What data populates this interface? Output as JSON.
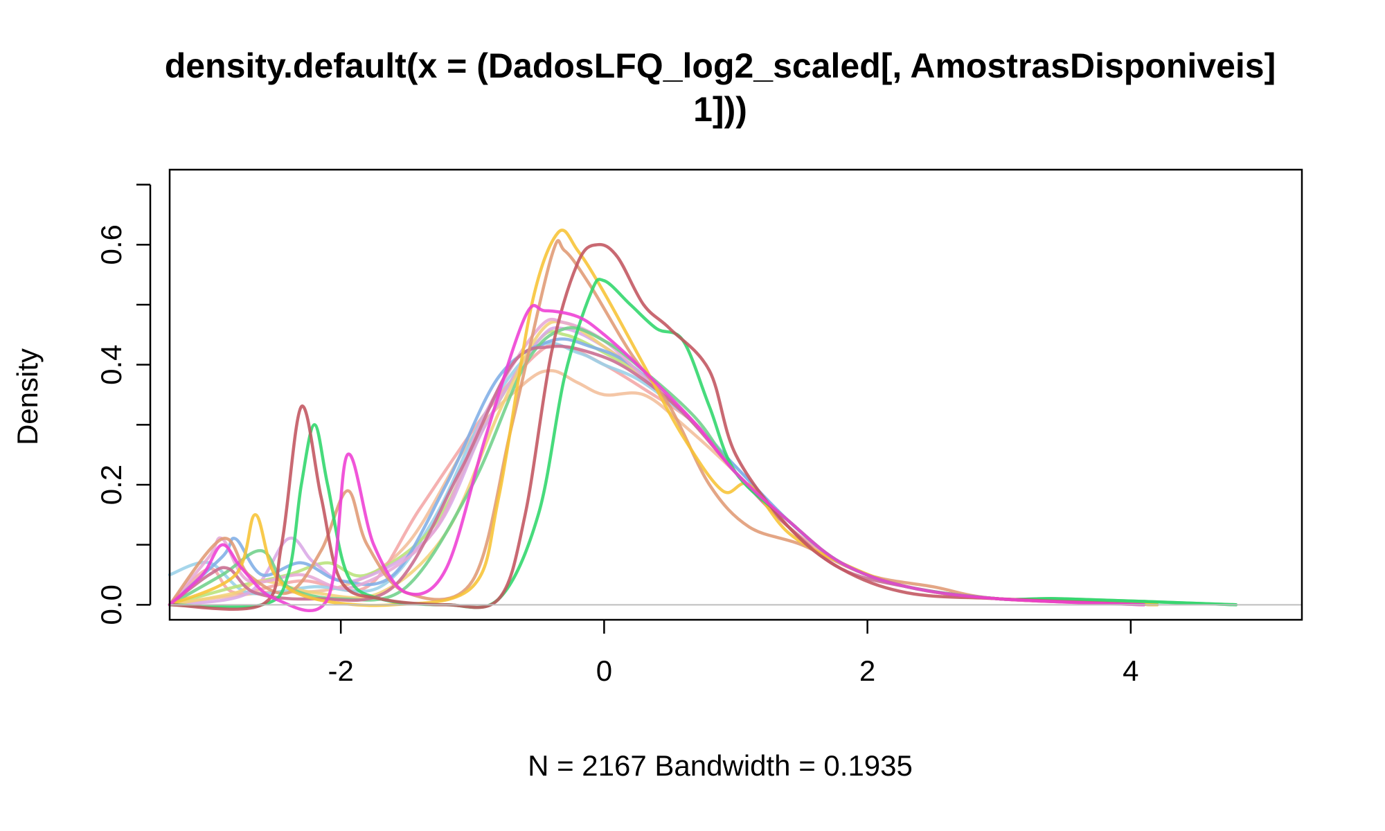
{
  "chart_data": {
    "type": "line",
    "title_line1": "density.default(x = (DadosLFQ_log2_scaled[, AmostrasDisponiveis]",
    "title_line2": "1]))",
    "xlabel": "N = 2167   Bandwidth = 0.1935",
    "ylabel": "Density",
    "xlim": [
      -3.3,
      5.3
    ],
    "ylim": [
      -0.025,
      0.725
    ],
    "x_ticks": [
      -2,
      0,
      2,
      4
    ],
    "y_ticks": [
      0.0,
      0.1,
      0.2,
      0.3,
      0.4,
      0.5,
      0.6,
      0.7
    ],
    "y_tick_labels": [
      "0.0",
      "0.2",
      "0.4",
      "0.6"
    ],
    "x_tick_labels": [
      "-2",
      "0",
      "2",
      "4"
    ],
    "zero_line": true,
    "grid": false,
    "series": [
      {
        "color": "#F2BE9A",
        "points": [
          [
            -3.3,
            0.0
          ],
          [
            -3.0,
            0.01
          ],
          [
            -2.6,
            0.02
          ],
          [
            -2.0,
            0.03
          ],
          [
            -1.5,
            0.1
          ],
          [
            -1.0,
            0.28
          ],
          [
            -0.6,
            0.37
          ],
          [
            -0.4,
            0.39
          ],
          [
            -0.2,
            0.37
          ],
          [
            0.0,
            0.35
          ],
          [
            0.3,
            0.35
          ],
          [
            0.6,
            0.3
          ],
          [
            1.0,
            0.22
          ],
          [
            1.4,
            0.13
          ],
          [
            1.8,
            0.07
          ],
          [
            2.3,
            0.03
          ],
          [
            3.0,
            0.01
          ],
          [
            4.2,
            0.0
          ]
        ]
      },
      {
        "color": "#F4A6A6",
        "points": [
          [
            -3.3,
            0.0
          ],
          [
            -3.0,
            0.06
          ],
          [
            -2.8,
            0.02
          ],
          [
            -2.3,
            0.04
          ],
          [
            -1.8,
            0.03
          ],
          [
            -1.4,
            0.16
          ],
          [
            -0.9,
            0.32
          ],
          [
            -0.5,
            0.42
          ],
          [
            -0.3,
            0.43
          ],
          [
            0.0,
            0.4
          ],
          [
            0.3,
            0.36
          ],
          [
            0.7,
            0.3
          ],
          [
            1.0,
            0.22
          ],
          [
            1.4,
            0.13
          ],
          [
            1.8,
            0.07
          ],
          [
            2.3,
            0.03
          ],
          [
            3.0,
            0.01
          ],
          [
            4.1,
            0.0
          ]
        ]
      },
      {
        "color": "#9AD0E8",
        "points": [
          [
            -3.3,
            0.05
          ],
          [
            -3.0,
            0.07
          ],
          [
            -2.7,
            0.02
          ],
          [
            -2.2,
            0.03
          ],
          [
            -1.7,
            0.03
          ],
          [
            -1.3,
            0.14
          ],
          [
            -0.9,
            0.32
          ],
          [
            -0.5,
            0.43
          ],
          [
            -0.2,
            0.42
          ],
          [
            0.0,
            0.4
          ],
          [
            0.3,
            0.37
          ],
          [
            0.7,
            0.3
          ],
          [
            1.0,
            0.23
          ],
          [
            1.4,
            0.14
          ],
          [
            1.8,
            0.07
          ],
          [
            2.3,
            0.03
          ],
          [
            3.0,
            0.01
          ],
          [
            4.2,
            0.0
          ]
        ]
      },
      {
        "color": "#B8E27A",
        "points": [
          [
            -3.3,
            0.0
          ],
          [
            -2.8,
            0.03
          ],
          [
            -2.4,
            0.05
          ],
          [
            -2.1,
            0.07
          ],
          [
            -1.8,
            0.05
          ],
          [
            -1.3,
            0.13
          ],
          [
            -0.9,
            0.3
          ],
          [
            -0.5,
            0.44
          ],
          [
            -0.3,
            0.45
          ],
          [
            0.0,
            0.42
          ],
          [
            0.3,
            0.38
          ],
          [
            0.7,
            0.3
          ],
          [
            1.0,
            0.22
          ],
          [
            1.4,
            0.14
          ],
          [
            1.8,
            0.07
          ],
          [
            2.3,
            0.03
          ],
          [
            3.0,
            0.01
          ],
          [
            4.2,
            0.0
          ]
        ]
      },
      {
        "color": "#D9A8E6",
        "points": [
          [
            -3.3,
            0.0
          ],
          [
            -2.7,
            0.02
          ],
          [
            -2.4,
            0.11
          ],
          [
            -2.2,
            0.07
          ],
          [
            -1.9,
            0.04
          ],
          [
            -1.3,
            0.12
          ],
          [
            -0.9,
            0.3
          ],
          [
            -0.5,
            0.44
          ],
          [
            -0.3,
            0.46
          ],
          [
            0.0,
            0.43
          ],
          [
            0.3,
            0.38
          ],
          [
            0.7,
            0.3
          ],
          [
            1.0,
            0.22
          ],
          [
            1.4,
            0.14
          ],
          [
            1.8,
            0.07
          ],
          [
            2.3,
            0.03
          ],
          [
            3.0,
            0.01
          ],
          [
            4.2,
            0.0
          ]
        ]
      },
      {
        "color": "#F2D27A",
        "points": [
          [
            -3.3,
            0.0
          ],
          [
            -2.8,
            0.02
          ],
          [
            -2.6,
            0.04
          ],
          [
            -2.2,
            0.02
          ],
          [
            -1.7,
            0.02
          ],
          [
            -1.2,
            0.12
          ],
          [
            -0.8,
            0.32
          ],
          [
            -0.5,
            0.45
          ],
          [
            -0.3,
            0.47
          ],
          [
            0.0,
            0.43
          ],
          [
            0.3,
            0.38
          ],
          [
            0.7,
            0.3
          ],
          [
            1.0,
            0.22
          ],
          [
            1.4,
            0.14
          ],
          [
            1.8,
            0.07
          ],
          [
            2.3,
            0.03
          ],
          [
            3.0,
            0.01
          ],
          [
            4.2,
            0.0
          ]
        ]
      },
      {
        "color": "#7FAEE6",
        "points": [
          [
            -3.3,
            0.0
          ],
          [
            -2.9,
            0.08
          ],
          [
            -2.8,
            0.11
          ],
          [
            -2.6,
            0.05
          ],
          [
            -2.3,
            0.07
          ],
          [
            -2.0,
            0.04
          ],
          [
            -1.6,
            0.05
          ],
          [
            -1.2,
            0.2
          ],
          [
            -0.8,
            0.38
          ],
          [
            -0.4,
            0.44
          ],
          [
            -0.1,
            0.43
          ],
          [
            0.2,
            0.4
          ],
          [
            0.6,
            0.32
          ],
          [
            1.0,
            0.23
          ],
          [
            1.4,
            0.14
          ],
          [
            1.8,
            0.07
          ],
          [
            2.3,
            0.03
          ],
          [
            3.0,
            0.01
          ],
          [
            4.2,
            0.0
          ]
        ]
      },
      {
        "color": "#E6A8D6",
        "points": [
          [
            -3.3,
            0.0
          ],
          [
            -3.0,
            0.08
          ],
          [
            -2.9,
            0.11
          ],
          [
            -2.7,
            0.04
          ],
          [
            -2.3,
            0.05
          ],
          [
            -1.9,
            0.03
          ],
          [
            -1.3,
            0.12
          ],
          [
            -0.9,
            0.32
          ],
          [
            -0.5,
            0.46
          ],
          [
            -0.3,
            0.47
          ],
          [
            0.0,
            0.44
          ],
          [
            0.3,
            0.38
          ],
          [
            0.7,
            0.3
          ],
          [
            1.0,
            0.22
          ],
          [
            1.4,
            0.14
          ],
          [
            1.8,
            0.07
          ],
          [
            2.3,
            0.03
          ],
          [
            3.0,
            0.01
          ],
          [
            4.2,
            0.0
          ]
        ]
      },
      {
        "color": "#6FD08A",
        "points": [
          [
            -3.3,
            0.0
          ],
          [
            -2.9,
            0.05
          ],
          [
            -2.6,
            0.09
          ],
          [
            -2.4,
            0.03
          ],
          [
            -2.0,
            0.01
          ],
          [
            -1.5,
            0.03
          ],
          [
            -1.0,
            0.2
          ],
          [
            -0.6,
            0.4
          ],
          [
            -0.3,
            0.46
          ],
          [
            0.0,
            0.44
          ],
          [
            0.3,
            0.39
          ],
          [
            0.7,
            0.31
          ],
          [
            1.0,
            0.22
          ],
          [
            1.4,
            0.14
          ],
          [
            1.8,
            0.07
          ],
          [
            2.3,
            0.03
          ],
          [
            3.0,
            0.01
          ],
          [
            3.5,
            0.01
          ],
          [
            4.8,
            0.0
          ]
        ]
      },
      {
        "color": "#C86B8E",
        "points": [
          [
            -3.3,
            0.0
          ],
          [
            -3.0,
            0.05
          ],
          [
            -2.85,
            0.06
          ],
          [
            -2.65,
            0.02
          ],
          [
            -2.2,
            0.01
          ],
          [
            -1.6,
            0.03
          ],
          [
            -1.1,
            0.22
          ],
          [
            -0.7,
            0.4
          ],
          [
            -0.4,
            0.43
          ],
          [
            -0.1,
            0.42
          ],
          [
            0.2,
            0.39
          ],
          [
            0.6,
            0.32
          ],
          [
            1.0,
            0.22
          ],
          [
            1.4,
            0.13
          ],
          [
            1.8,
            0.06
          ],
          [
            2.3,
            0.03
          ],
          [
            3.0,
            0.01
          ],
          [
            4.2,
            0.0
          ]
        ]
      },
      {
        "color": "#E09A74",
        "points": [
          [
            -3.3,
            0.0
          ],
          [
            -2.9,
            0.11
          ],
          [
            -2.7,
            0.05
          ],
          [
            -2.4,
            0.02
          ],
          [
            -2.15,
            0.09
          ],
          [
            -1.95,
            0.19
          ],
          [
            -1.8,
            0.1
          ],
          [
            -1.5,
            0.02
          ],
          [
            -1.0,
            0.04
          ],
          [
            -0.7,
            0.3
          ],
          [
            -0.4,
            0.58
          ],
          [
            -0.3,
            0.59
          ],
          [
            -0.1,
            0.53
          ],
          [
            0.2,
            0.42
          ],
          [
            0.5,
            0.33
          ],
          [
            0.8,
            0.2
          ],
          [
            1.1,
            0.13
          ],
          [
            1.5,
            0.1
          ],
          [
            2.0,
            0.05
          ],
          [
            2.5,
            0.03
          ],
          [
            3.0,
            0.01
          ],
          [
            4.2,
            0.0
          ]
        ]
      },
      {
        "color": "#F7C334",
        "points": [
          [
            -3.3,
            0.0
          ],
          [
            -2.8,
            0.05
          ],
          [
            -2.65,
            0.15
          ],
          [
            -2.5,
            0.05
          ],
          [
            -2.2,
            0.01
          ],
          [
            -1.6,
            0.0
          ],
          [
            -1.0,
            0.03
          ],
          [
            -0.8,
            0.18
          ],
          [
            -0.55,
            0.5
          ],
          [
            -0.35,
            0.62
          ],
          [
            -0.2,
            0.59
          ],
          [
            0.0,
            0.52
          ],
          [
            0.3,
            0.4
          ],
          [
            0.6,
            0.28
          ],
          [
            0.9,
            0.19
          ],
          [
            1.1,
            0.2
          ],
          [
            1.4,
            0.12
          ],
          [
            1.8,
            0.07
          ],
          [
            2.3,
            0.03
          ],
          [
            3.0,
            0.01
          ],
          [
            4.2,
            0.0
          ]
        ]
      },
      {
        "color": "#2ED66A",
        "points": [
          [
            -3.3,
            0.0
          ],
          [
            -2.6,
            0.0
          ],
          [
            -2.4,
            0.05
          ],
          [
            -2.3,
            0.2
          ],
          [
            -2.2,
            0.3
          ],
          [
            -2.1,
            0.2
          ],
          [
            -1.95,
            0.05
          ],
          [
            -1.7,
            0.01
          ],
          [
            -1.2,
            0.0
          ],
          [
            -0.8,
            0.01
          ],
          [
            -0.5,
            0.15
          ],
          [
            -0.3,
            0.38
          ],
          [
            -0.1,
            0.52
          ],
          [
            0.0,
            0.54
          ],
          [
            0.2,
            0.5
          ],
          [
            0.4,
            0.46
          ],
          [
            0.6,
            0.44
          ],
          [
            0.8,
            0.33
          ],
          [
            1.0,
            0.22
          ],
          [
            1.4,
            0.14
          ],
          [
            1.8,
            0.07
          ],
          [
            2.3,
            0.03
          ],
          [
            3.0,
            0.01
          ],
          [
            3.5,
            0.01
          ],
          [
            4.8,
            0.0
          ]
        ]
      },
      {
        "color": "#C2545E",
        "points": [
          [
            -3.3,
            0.0
          ],
          [
            -2.6,
            0.0
          ],
          [
            -2.45,
            0.1
          ],
          [
            -2.3,
            0.33
          ],
          [
            -2.15,
            0.18
          ],
          [
            -2.0,
            0.04
          ],
          [
            -1.7,
            0.01
          ],
          [
            -1.2,
            0.0
          ],
          [
            -0.8,
            0.01
          ],
          [
            -0.6,
            0.15
          ],
          [
            -0.4,
            0.42
          ],
          [
            -0.2,
            0.57
          ],
          [
            -0.05,
            0.6
          ],
          [
            0.1,
            0.58
          ],
          [
            0.3,
            0.5
          ],
          [
            0.5,
            0.46
          ],
          [
            0.8,
            0.39
          ],
          [
            1.0,
            0.25
          ],
          [
            1.4,
            0.13
          ],
          [
            1.8,
            0.06
          ],
          [
            2.3,
            0.02
          ],
          [
            3.0,
            0.01
          ],
          [
            4.1,
            0.0
          ]
        ]
      },
      {
        "color": "#EE3DD4",
        "points": [
          [
            -3.3,
            0.0
          ],
          [
            -3.05,
            0.05
          ],
          [
            -2.9,
            0.1
          ],
          [
            -2.75,
            0.06
          ],
          [
            -2.5,
            0.01
          ],
          [
            -2.1,
            0.01
          ],
          [
            -1.95,
            0.25
          ],
          [
            -1.75,
            0.1
          ],
          [
            -1.5,
            0.02
          ],
          [
            -1.2,
            0.06
          ],
          [
            -0.9,
            0.28
          ],
          [
            -0.6,
            0.48
          ],
          [
            -0.45,
            0.49
          ],
          [
            -0.2,
            0.48
          ],
          [
            0.0,
            0.45
          ],
          [
            0.3,
            0.39
          ],
          [
            0.7,
            0.3
          ],
          [
            1.0,
            0.22
          ],
          [
            1.4,
            0.14
          ],
          [
            1.8,
            0.07
          ],
          [
            2.3,
            0.03
          ],
          [
            3.0,
            0.01
          ],
          [
            4.1,
            0.0
          ]
        ]
      }
    ]
  }
}
